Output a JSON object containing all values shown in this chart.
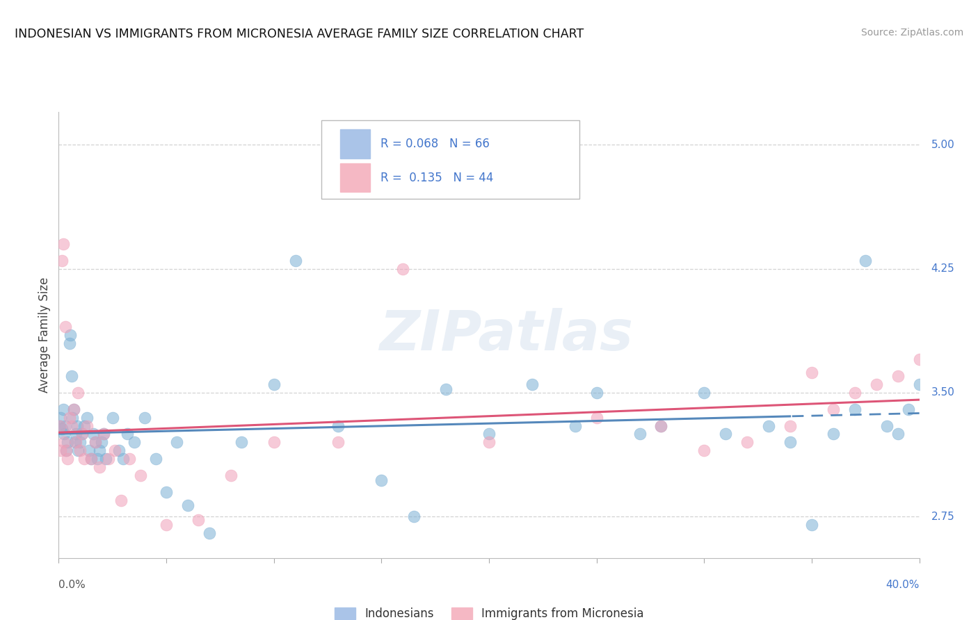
{
  "title": "INDONESIAN VS IMMIGRANTS FROM MICRONESIA AVERAGE FAMILY SIZE CORRELATION CHART",
  "source_text": "Source: ZipAtlas.com",
  "ylabel": "Average Family Size",
  "right_yticks": [
    2.75,
    3.5,
    4.25,
    5.0
  ],
  "watermark": "ZIPatlas",
  "legend_entries": [
    {
      "label": "R = 0.068   N = 66",
      "color": "#aac4e8"
    },
    {
      "label": "R =  0.135   N = 44",
      "color": "#f5b8c4"
    }
  ],
  "legend_bottom": [
    "Indonesians",
    "Immigrants from Micronesia"
  ],
  "blue_color": "#7bafd4",
  "pink_color": "#f0a0b8",
  "trendline_blue_color": "#5588bb",
  "trendline_pink_color": "#dd5577",
  "xlim": [
    0,
    40
  ],
  "ylim": [
    2.5,
    5.2
  ],
  "background_color": "#ffffff",
  "grid_color": "#c8c8c8",
  "indonesians_x": [
    0.05,
    0.1,
    0.15,
    0.2,
    0.25,
    0.3,
    0.35,
    0.4,
    0.5,
    0.55,
    0.6,
    0.65,
    0.7,
    0.75,
    0.8,
    0.85,
    0.9,
    1.0,
    1.1,
    1.2,
    1.3,
    1.4,
    1.5,
    1.6,
    1.7,
    1.8,
    1.9,
    2.0,
    2.1,
    2.2,
    2.5,
    2.8,
    3.0,
    3.2,
    3.5,
    4.0,
    4.5,
    5.0,
    5.5,
    6.0,
    7.0,
    8.5,
    10.0,
    11.0,
    13.0,
    15.0,
    16.5,
    18.0,
    20.0,
    22.0,
    24.0,
    25.0,
    27.0,
    28.0,
    30.0,
    31.0,
    33.0,
    34.0,
    35.0,
    36.0,
    37.0,
    37.5,
    38.5,
    39.0,
    39.5,
    40.0
  ],
  "indonesians_y": [
    3.3,
    3.35,
    3.28,
    3.4,
    3.25,
    3.3,
    3.15,
    3.2,
    3.8,
    3.85,
    3.6,
    3.35,
    3.4,
    3.2,
    3.25,
    3.3,
    3.15,
    3.2,
    3.25,
    3.3,
    3.35,
    3.15,
    3.1,
    3.25,
    3.2,
    3.1,
    3.15,
    3.2,
    3.25,
    3.1,
    3.35,
    3.15,
    3.1,
    3.25,
    3.2,
    3.35,
    3.1,
    2.9,
    3.2,
    2.82,
    2.65,
    3.2,
    3.55,
    4.3,
    3.3,
    2.97,
    2.75,
    3.52,
    3.25,
    3.55,
    3.3,
    3.5,
    3.25,
    3.3,
    3.5,
    3.25,
    3.3,
    3.2,
    2.7,
    3.25,
    3.4,
    4.3,
    3.3,
    3.25,
    3.4,
    3.55
  ],
  "micronesia_x": [
    0.05,
    0.1,
    0.15,
    0.2,
    0.25,
    0.3,
    0.35,
    0.4,
    0.5,
    0.6,
    0.7,
    0.8,
    0.9,
    1.0,
    1.1,
    1.2,
    1.3,
    1.5,
    1.7,
    1.9,
    2.1,
    2.3,
    2.6,
    2.9,
    3.3,
    3.8,
    5.0,
    6.5,
    8.0,
    10.0,
    13.0,
    16.0,
    20.0,
    25.0,
    28.0,
    30.0,
    32.0,
    34.0,
    35.0,
    36.0,
    37.0,
    38.0,
    39.0,
    40.0
  ],
  "micronesia_y": [
    3.3,
    3.15,
    4.3,
    4.4,
    3.2,
    3.9,
    3.15,
    3.1,
    3.35,
    3.3,
    3.4,
    3.2,
    3.5,
    3.15,
    3.25,
    3.1,
    3.3,
    3.1,
    3.2,
    3.05,
    3.25,
    3.1,
    3.15,
    2.85,
    3.1,
    3.0,
    2.7,
    2.73,
    3.0,
    3.2,
    3.2,
    4.25,
    3.2,
    3.35,
    3.3,
    3.15,
    3.2,
    3.3,
    3.62,
    3.4,
    3.5,
    3.55,
    3.6,
    3.7
  ]
}
